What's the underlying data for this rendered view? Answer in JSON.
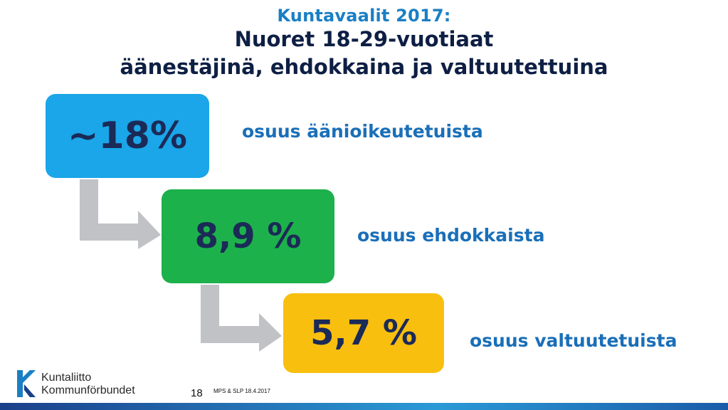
{
  "slide": {
    "kicker": "Kuntavaalit 2017:",
    "title_line1": "Nuoret 18-29-vuotiaat",
    "title_line2": "äänestäjinä, ehdokkaina ja valtuutettuina"
  },
  "steps": [
    {
      "value": "~18%",
      "label": "osuus äänioikeutetuista",
      "color": "#1aa6e8"
    },
    {
      "value": "8,9 %",
      "label": "osuus ehdokkaista",
      "color": "#1db14b"
    },
    {
      "value": "5,7 %",
      "label": "osuus valtuutetuista",
      "color": "#f9bf0f"
    }
  ],
  "footer": {
    "logo_line1": "Kuntaliitto",
    "logo_line2": "Kommunförbundet",
    "page_number": "18",
    "note": "MPS & SLP 18.4.2017"
  },
  "colors": {
    "title": "#0e1f44",
    "accent": "#1a7fc4",
    "arrow": "#c0c2c6"
  }
}
